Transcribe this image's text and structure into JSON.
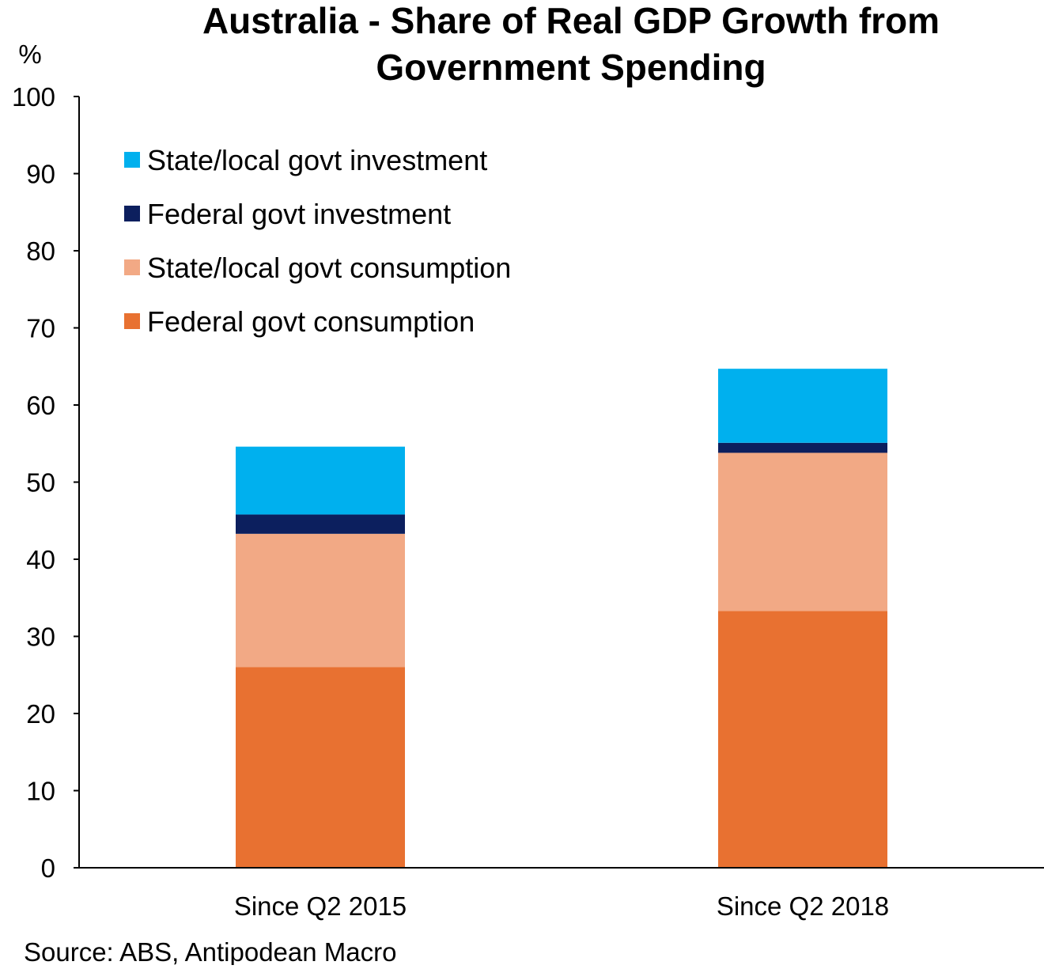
{
  "chart_data": {
    "type": "bar",
    "stacked": true,
    "title_line1": "Australia - Share of Real GDP Growth from",
    "title_line2": "Government Spending",
    "ylabel": "%",
    "ylim": [
      0,
      100
    ],
    "yticks": [
      "0",
      "10",
      "20",
      "30",
      "40",
      "50",
      "60",
      "70",
      "80",
      "90",
      "100"
    ],
    "categories": [
      "Since Q2 2015",
      "Since Q2 2018"
    ],
    "series": [
      {
        "name": "Federal govt consumption",
        "color": "#E87131",
        "values": [
          26.0,
          33.3
        ]
      },
      {
        "name": "State/local govt consumption",
        "color": "#F2A985",
        "values": [
          17.3,
          20.5
        ]
      },
      {
        "name": "Federal govt investment",
        "color": "#0C1F5E",
        "values": [
          2.5,
          1.3
        ]
      },
      {
        "name": "State/local govt investment",
        "color": "#00B0EE",
        "values": [
          8.8,
          9.6
        ]
      }
    ],
    "legend_order": [
      3,
      2,
      1,
      0
    ],
    "legend_position": "top-left",
    "source": "Source: ABS, Antipodean Macro"
  }
}
